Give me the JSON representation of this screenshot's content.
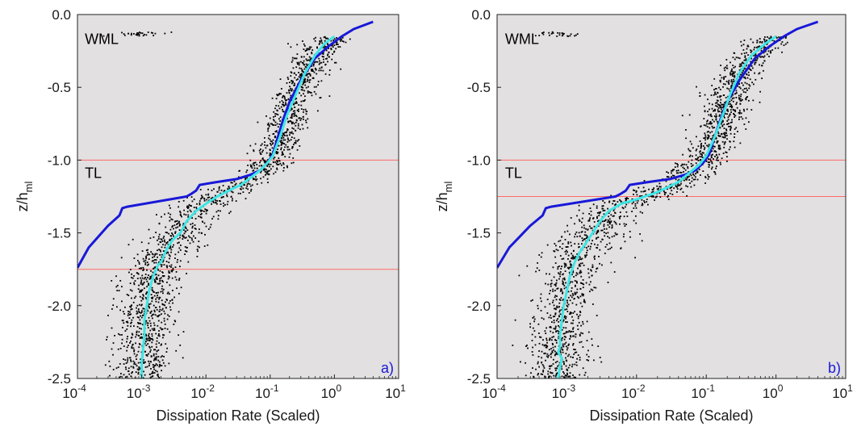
{
  "colors": {
    "background": "#e2e0e0",
    "scatter": "#000000",
    "profile_blue": "#1818d8",
    "profile_cyan": "#3ee6e6",
    "layer_line": "#ff6a6a",
    "panel_letter": "#1a1ad8"
  },
  "chart_data": [
    {
      "type": "line",
      "panel_label": "a)",
      "xlabel": "Dissipation Rate (Scaled)",
      "ylabel": "z/h",
      "ylabel_sub": "ml",
      "xscale": "log",
      "xlim": [
        0.0001,
        10
      ],
      "ylim": [
        -2.5,
        0.0
      ],
      "xticks": [
        0.0001,
        0.001,
        0.01,
        0.1,
        1,
        10
      ],
      "xtick_labels": [
        {
          "base": "10",
          "exp": "-4"
        },
        {
          "base": "10",
          "exp": "-3"
        },
        {
          "base": "10",
          "exp": "-2"
        },
        {
          "base": "10",
          "exp": "-1"
        },
        {
          "base": "10",
          "exp": "0"
        },
        {
          "base": "10",
          "exp": "1"
        }
      ],
      "yticks": [
        0.0,
        -0.5,
        -1.0,
        -1.5,
        -2.0,
        -2.5
      ],
      "ytick_labels": [
        "0.0",
        "-0.5",
        "-1.0",
        "-1.5",
        "-2.0",
        "-2.5"
      ],
      "region_labels": [
        {
          "text": "WML",
          "x": 0.00013,
          "y": -0.17
        },
        {
          "text": "TL",
          "x": 0.00013,
          "y": -1.09
        }
      ],
      "hlines": [
        -1.0,
        -1.75
      ],
      "series": [
        {
          "style": "line",
          "color": "blue",
          "x": [
            4.0,
            2.0,
            1.3,
            0.8,
            0.5,
            0.3,
            0.2,
            0.16,
            0.13,
            0.11,
            0.09,
            0.07,
            0.05,
            0.03,
            0.015,
            0.008,
            0.007,
            0.006,
            0.005,
            0.0006,
            0.0005,
            0.00045,
            0.0003,
            0.00015,
            0.0001
          ],
          "y": [
            -0.05,
            -0.1,
            -0.15,
            -0.22,
            -0.3,
            -0.45,
            -0.6,
            -0.72,
            -0.85,
            -0.96,
            -1.02,
            -1.07,
            -1.1,
            -1.13,
            -1.15,
            -1.17,
            -1.21,
            -1.23,
            -1.25,
            -1.32,
            -1.33,
            -1.38,
            -1.45,
            -1.6,
            -1.74
          ]
        },
        {
          "style": "line",
          "color": "cyan",
          "x": [
            1.0,
            0.7,
            0.5,
            0.35,
            0.25,
            0.18,
            0.14,
            0.11,
            0.09,
            0.07,
            0.05,
            0.035,
            0.025,
            0.015,
            0.01,
            0.007,
            0.005,
            0.004,
            0.003,
            0.0024,
            0.0022,
            0.002,
            0.0018,
            0.0015,
            0.0013,
            0.0012,
            0.0011,
            0.0011,
            0.00105,
            0.001,
            0.001
          ],
          "y": [
            -0.15,
            -0.2,
            -0.28,
            -0.4,
            -0.55,
            -0.7,
            -0.85,
            -0.97,
            -1.02,
            -1.07,
            -1.12,
            -1.17,
            -1.2,
            -1.25,
            -1.3,
            -1.35,
            -1.42,
            -1.5,
            -1.55,
            -1.62,
            -1.66,
            -1.7,
            -1.72,
            -1.8,
            -1.9,
            -2.0,
            -2.1,
            -2.2,
            -2.3,
            -2.4,
            -2.5
          ]
        }
      ]
    },
    {
      "type": "line",
      "panel_label": "b)",
      "xlabel": "Dissipation Rate (Scaled)",
      "ylabel": "z/h",
      "ylabel_sub": "ml",
      "xscale": "log",
      "xlim": [
        0.0001,
        10
      ],
      "ylim": [
        -2.5,
        0.0
      ],
      "xticks": [
        0.0001,
        0.001,
        0.01,
        0.1,
        1,
        10
      ],
      "xtick_labels": [
        {
          "base": "10",
          "exp": "-4"
        },
        {
          "base": "10",
          "exp": "-3"
        },
        {
          "base": "10",
          "exp": "-2"
        },
        {
          "base": "10",
          "exp": "-1"
        },
        {
          "base": "10",
          "exp": "0"
        },
        {
          "base": "10",
          "exp": "1"
        }
      ],
      "yticks": [
        0.0,
        -0.5,
        -1.0,
        -1.5,
        -2.0,
        -2.5
      ],
      "ytick_labels": [
        "0.0",
        "-0.5",
        "-1.0",
        "-1.5",
        "-2.0",
        "-2.5"
      ],
      "region_labels": [
        {
          "text": "WML",
          "x": 0.00013,
          "y": -0.17
        },
        {
          "text": "TL",
          "x": 0.00013,
          "y": -1.09
        }
      ],
      "hlines": [
        -1.0,
        -1.25
      ],
      "series": [
        {
          "style": "line",
          "color": "blue",
          "x": [
            4.0,
            2.0,
            1.3,
            0.8,
            0.5,
            0.3,
            0.2,
            0.16,
            0.13,
            0.11,
            0.09,
            0.07,
            0.05,
            0.03,
            0.015,
            0.008,
            0.007,
            0.006,
            0.005,
            0.0006,
            0.0005,
            0.00045,
            0.0003,
            0.00015,
            0.0001
          ],
          "y": [
            -0.05,
            -0.1,
            -0.15,
            -0.22,
            -0.3,
            -0.45,
            -0.6,
            -0.72,
            -0.85,
            -0.96,
            -1.02,
            -1.07,
            -1.1,
            -1.13,
            -1.15,
            -1.17,
            -1.21,
            -1.23,
            -1.25,
            -1.32,
            -1.33,
            -1.38,
            -1.45,
            -1.6,
            -1.74
          ]
        },
        {
          "style": "line",
          "color": "cyan",
          "x": [
            1.0,
            0.7,
            0.45,
            0.3,
            0.22,
            0.17,
            0.13,
            0.1,
            0.08,
            0.06,
            0.04,
            0.02,
            0.01,
            0.006,
            0.004,
            0.003,
            0.0025,
            0.002,
            0.0016,
            0.0013,
            0.0011,
            0.001,
            0.0009,
            0.00085,
            0.0008,
            0.0008,
            0.00075,
            0.00085,
            0.0008,
            0.00075
          ],
          "y": [
            -0.15,
            -0.2,
            -0.28,
            -0.4,
            -0.55,
            -0.7,
            -0.85,
            -0.97,
            -1.03,
            -1.08,
            -1.15,
            -1.22,
            -1.27,
            -1.3,
            -1.35,
            -1.42,
            -1.48,
            -1.55,
            -1.62,
            -1.7,
            -1.8,
            -1.9,
            -2.0,
            -2.1,
            -2.2,
            -2.28,
            -2.32,
            -2.36,
            -2.42,
            -2.5
          ]
        }
      ]
    }
  ]
}
